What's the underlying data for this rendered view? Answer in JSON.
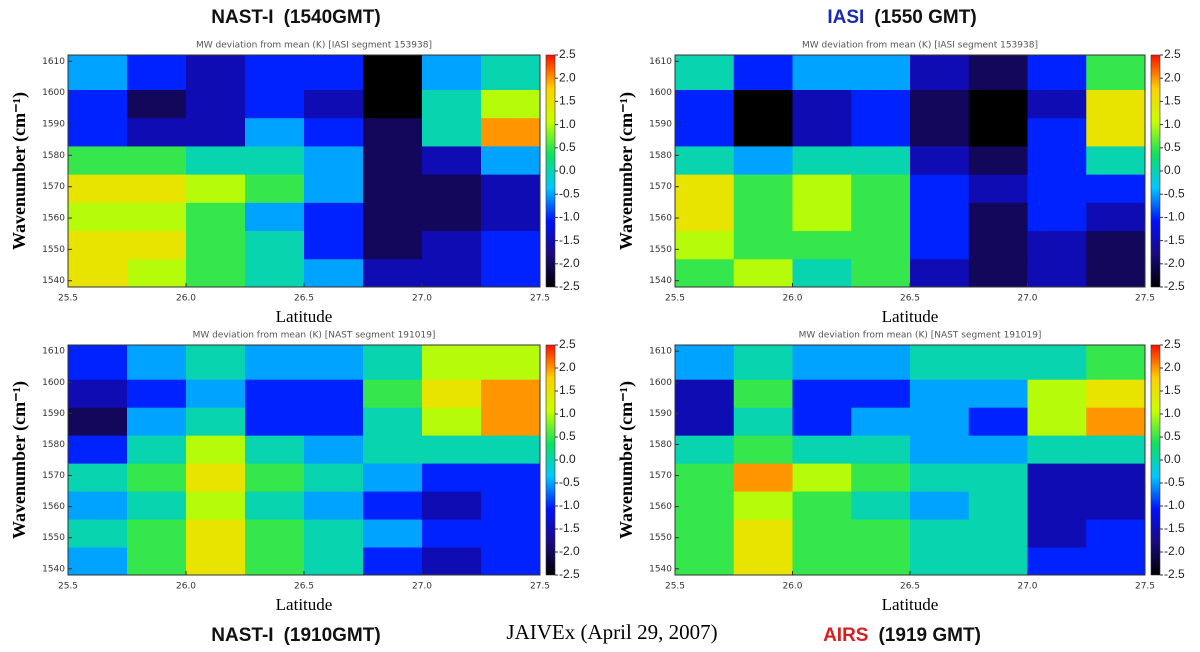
{
  "caption": "JAIVEx (April 29, 2007)",
  "chart_data": [
    {
      "type": "heatmap",
      "instrument": "NAST-I",
      "instrument_color": "#111111",
      "title": "(1540GMT)",
      "subtitle": "MW deviation from mean (K) [IASI segment 153938]",
      "xlabel": "Latitude",
      "ylabel": "Wavenumber (cm⁻¹)",
      "xlim": [
        25.5,
        27.5
      ],
      "xticks": [
        25.5,
        {
          "value": 26,
          "label": "26.0"
        },
        26.5,
        {
          "value": 27,
          "label": "27.0"
        },
        27.5
      ],
      "ylim": [
        1538,
        1612
      ],
      "yticks": [
        1540,
        1550,
        1560,
        1570,
        1580,
        1590,
        1600,
        1610
      ],
      "x_bins": [
        25.5,
        25.75,
        26,
        26.25,
        26.5,
        26.75,
        27,
        27.25,
        27.5
      ],
      "y_bins": [
        1538,
        1547,
        1556,
        1565,
        1574,
        1583,
        1592,
        1601,
        1612
      ],
      "values": [
        [
          1.5,
          1,
          0.5,
          0,
          -0.5,
          -1.5,
          -1.5,
          -1
        ],
        [
          1.5,
          1.5,
          0.5,
          0,
          -1,
          -2,
          -1.5,
          -1
        ],
        [
          1,
          1,
          0.5,
          -0.5,
          -1,
          -2,
          -2,
          -1.5
        ],
        [
          1.5,
          1.5,
          1,
          0.5,
          -0.5,
          -2,
          -2,
          -1.5
        ],
        [
          0.5,
          0.5,
          0,
          0,
          -0.5,
          -2,
          -1.5,
          -0.5
        ],
        [
          -1,
          -1.5,
          -1.5,
          -0.5,
          -1,
          -2,
          0,
          2
        ],
        [
          -1,
          -2,
          -1.5,
          -1,
          -1.5,
          -2.5,
          0,
          1
        ],
        [
          -0.5,
          -1,
          -1.5,
          -1,
          -1,
          -2.5,
          -0.5,
          0
        ]
      ],
      "clim": [
        -2.5,
        2.5
      ],
      "cticks": [
        2.5,
        {
          "value": 2,
          "label": "2.0"
        },
        1.5,
        {
          "value": 1,
          "label": "1.0"
        },
        0.5,
        {
          "value": 0,
          "label": "0.0"
        },
        -0.5,
        {
          "value": -1,
          "label": "-1.0"
        },
        -1.5,
        {
          "value": -2,
          "label": "-2.0"
        },
        -2.5
      ],
      "colormap": [
        "#000000",
        "#1a0a80",
        "#0010ff",
        "#00c8ff",
        "#10e060",
        "#c8ff00",
        "#ffd000",
        "#ff1000"
      ]
    },
    {
      "type": "heatmap",
      "instrument": "IASI",
      "instrument_color": "#1a2bb0",
      "title": "(1550 GMT)",
      "subtitle": "MW deviation from mean (K) [IASI segment 153938]",
      "xlabel": "Latitude",
      "ylabel": "Wavenumber (cm⁻¹)",
      "xlim": [
        25.5,
        27.5
      ],
      "xticks": [
        25.5,
        {
          "value": 26,
          "label": "26.0"
        },
        26.5,
        {
          "value": 27,
          "label": "27.0"
        },
        27.5
      ],
      "ylim": [
        1538,
        1612
      ],
      "yticks": [
        1540,
        1550,
        1560,
        1570,
        1580,
        1590,
        1600,
        1610
      ],
      "x_bins": [
        25.5,
        25.75,
        26,
        26.25,
        26.5,
        26.75,
        27,
        27.25,
        27.5
      ],
      "y_bins": [
        1538,
        1547,
        1556,
        1565,
        1574,
        1583,
        1592,
        1601,
        1612
      ],
      "values": [
        [
          0.5,
          1,
          0,
          0.5,
          -1.5,
          -2,
          -1.5,
          -2
        ],
        [
          1,
          0.5,
          0.5,
          0.5,
          -1,
          -2,
          -1.5,
          -2
        ],
        [
          1.5,
          0.5,
          1,
          0.5,
          -1,
          -2,
          -1,
          -1.5
        ],
        [
          1.5,
          0.5,
          1,
          0.5,
          -1,
          -1.5,
          -1,
          -1
        ],
        [
          0,
          -0.5,
          0,
          0,
          -1.5,
          -2,
          -1,
          0
        ],
        [
          -1,
          -2.5,
          -1.5,
          -1,
          -2,
          -2.5,
          -1,
          1.5
        ],
        [
          -1,
          -2.5,
          -1.5,
          -1,
          -2,
          -2.5,
          -1.5,
          1.5
        ],
        [
          0,
          -1,
          -0.5,
          -0.5,
          -1.5,
          -2,
          -1,
          0.5
        ]
      ],
      "clim": [
        -2.5,
        2.5
      ],
      "cticks": [
        2.5,
        {
          "value": 2,
          "label": "2.0"
        },
        1.5,
        {
          "value": 1,
          "label": "1.0"
        },
        0.5,
        {
          "value": 0,
          "label": "0.0"
        },
        -0.5,
        {
          "value": -1,
          "label": "-1.0"
        },
        -1.5,
        {
          "value": -2,
          "label": "-2.0"
        },
        -2.5
      ],
      "colormap": [
        "#000000",
        "#1a0a80",
        "#0010ff",
        "#00c8ff",
        "#10e060",
        "#c8ff00",
        "#ffd000",
        "#ff1000"
      ]
    },
    {
      "type": "heatmap",
      "instrument": "NAST-I",
      "instrument_color": "#111111",
      "title": "(1910GMT)",
      "subtitle": "MW deviation from mean (K) [NAST segment 191019]",
      "xlabel": "Latitude",
      "ylabel": "Wavenumber (cm⁻¹)",
      "xlim": [
        25.5,
        27.5
      ],
      "xticks": [
        25.5,
        {
          "value": 26,
          "label": "26.0"
        },
        26.5,
        {
          "value": 27,
          "label": "27.0"
        },
        27.5
      ],
      "ylim": [
        1538,
        1612
      ],
      "yticks": [
        1540,
        1550,
        1560,
        1570,
        1580,
        1590,
        1600,
        1610
      ],
      "x_bins": [
        25.5,
        25.75,
        26,
        26.25,
        26.5,
        26.75,
        27,
        27.25,
        27.5
      ],
      "y_bins": [
        1538,
        1547,
        1556,
        1565,
        1574,
        1583,
        1592,
        1601,
        1612
      ],
      "values": [
        [
          -0.5,
          0.5,
          1.5,
          0.5,
          0,
          -1,
          -1.5,
          -1
        ],
        [
          0,
          0.5,
          1.5,
          0.5,
          0,
          -0.5,
          -1,
          -1
        ],
        [
          -0.5,
          0,
          1,
          0,
          -0.5,
          -1,
          -1.5,
          -1
        ],
        [
          0,
          0.5,
          1.5,
          0.5,
          0,
          -0.5,
          -1,
          -1
        ],
        [
          -1,
          0,
          1,
          0,
          -0.5,
          0,
          0,
          0
        ],
        [
          -2,
          -0.5,
          0,
          -1,
          -1,
          0,
          1,
          2
        ],
        [
          -1.5,
          -1,
          -0.5,
          -1,
          -1,
          0.5,
          1.5,
          2
        ],
        [
          -1,
          -0.5,
          0,
          -0.5,
          -0.5,
          0,
          1,
          1
        ]
      ],
      "clim": [
        -2.5,
        2.5
      ],
      "cticks": [
        2.5,
        {
          "value": 2,
          "label": "2.0"
        },
        1.5,
        {
          "value": 1,
          "label": "1.0"
        },
        0.5,
        {
          "value": 0,
          "label": "0.0"
        },
        -0.5,
        {
          "value": -1,
          "label": "-1.0"
        },
        -1.5,
        {
          "value": -2,
          "label": "-2.0"
        },
        -2.5
      ],
      "colormap": [
        "#000000",
        "#1a0a80",
        "#0010ff",
        "#00c8ff",
        "#10e060",
        "#c8ff00",
        "#ffd000",
        "#ff1000"
      ]
    },
    {
      "type": "heatmap",
      "instrument": "AIRS",
      "instrument_color": "#d42020",
      "title": "(1919 GMT)",
      "subtitle": "MW deviation from mean (K) [NAST segment 191019]",
      "xlabel": "Latitude",
      "ylabel": "Wavenumber (cm⁻¹)",
      "xlim": [
        25.5,
        27.5
      ],
      "xticks": [
        25.5,
        {
          "value": 26,
          "label": "26.0"
        },
        26.5,
        {
          "value": 27,
          "label": "27.0"
        },
        27.5
      ],
      "ylim": [
        1538,
        1612
      ],
      "yticks": [
        1540,
        1550,
        1560,
        1570,
        1580,
        1590,
        1600,
        1610
      ],
      "x_bins": [
        25.5,
        25.75,
        26,
        26.25,
        26.5,
        26.75,
        27,
        27.25,
        27.5
      ],
      "y_bins": [
        1538,
        1547,
        1556,
        1565,
        1574,
        1583,
        1592,
        1601,
        1612
      ],
      "values": [
        [
          0.5,
          1.5,
          0.5,
          0.5,
          0,
          0,
          -1,
          -1
        ],
        [
          0.5,
          1.5,
          0.5,
          0.5,
          0,
          0,
          -1.5,
          -1
        ],
        [
          0.5,
          1,
          0.5,
          0,
          -0.5,
          0,
          -1.5,
          -1.5
        ],
        [
          0.5,
          2,
          1,
          0.5,
          0,
          0,
          -1.5,
          -1.5
        ],
        [
          0,
          0.5,
          0,
          0,
          -0.5,
          -0.5,
          0,
          0
        ],
        [
          -1.5,
          0,
          -1,
          -0.5,
          -0.5,
          -1,
          1,
          2
        ],
        [
          -1.5,
          0.5,
          -1,
          -1,
          -0.5,
          -0.5,
          1,
          1.5
        ],
        [
          -0.5,
          0,
          -0.5,
          -0.5,
          0,
          0,
          0,
          0.5
        ]
      ],
      "clim": [
        -2.5,
        2.5
      ],
      "cticks": [
        2.5,
        {
          "value": 2,
          "label": "2.0"
        },
        1.5,
        {
          "value": 1,
          "label": "1.0"
        },
        0.5,
        {
          "value": 0,
          "label": "0.0"
        },
        -0.5,
        {
          "value": -1,
          "label": "-1.0"
        },
        -1.5,
        {
          "value": -2,
          "label": "-2.0"
        },
        -2.5
      ],
      "colormap": [
        "#000000",
        "#1a0a80",
        "#0010ff",
        "#00c8ff",
        "#10e060",
        "#c8ff00",
        "#ffd000",
        "#ff1000"
      ]
    }
  ]
}
